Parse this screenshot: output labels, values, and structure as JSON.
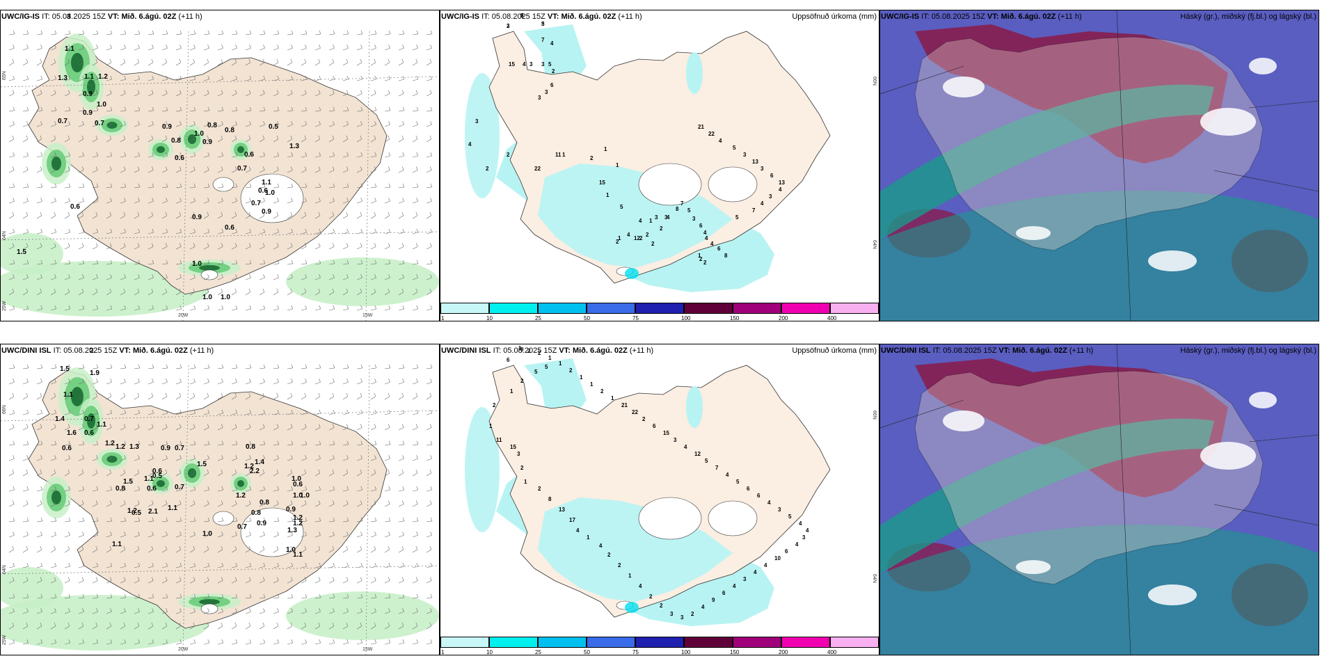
{
  "rows": [
    {
      "model": "UWC/IG-IS",
      "wind_panel": {
        "it_label": "IT:",
        "it_value": "05.08.2025 15Z",
        "vt_label": "VT:",
        "vt_value": "Mið. 6.ágú. 02Z",
        "lead": "(+11 h)",
        "values": [
          "3",
          "1.1",
          "1.3",
          "1.1",
          "1.2",
          "0.9",
          "1.0",
          "0.9",
          "0.7",
          "0.7",
          "0.9",
          "0.8",
          "1.0",
          "0.9",
          "0.8",
          "0.8",
          "0.6",
          "0.5",
          "1.3",
          "0.6",
          "0.7",
          "1.1",
          "1.0",
          "0.7",
          "0.9",
          "0.6",
          "0.6",
          "0.9",
          "0.6",
          "1.0",
          "1.0",
          "1.0",
          "1.5"
        ],
        "lat_labels": [
          "65N",
          "64N"
        ],
        "lon_labels": [
          "25W",
          "20W",
          "15W"
        ]
      },
      "precip_panel": {
        "it_label": "IT:",
        "it_value": "05.08.2025 15Z",
        "vt_label": "VT:",
        "vt_value": "Mið. 6.ágú. 02Z",
        "lead": "(+11 h)",
        "right_title": "Uppsöfnuð úrkoma (mm)",
        "values": [
          "5",
          "3",
          "5",
          "4",
          "7",
          "15",
          "4",
          "3",
          "3",
          "5",
          "2",
          "6",
          "3",
          "3",
          "3",
          "4",
          "2",
          "2",
          "22",
          "11",
          "1",
          "2",
          "1",
          "1",
          "15",
          "1",
          "5",
          "4",
          "1",
          "3",
          "3",
          "1",
          "2",
          "2",
          "2",
          "1",
          "4",
          "12",
          "2",
          "2",
          "2",
          "2",
          "4",
          "8",
          "7",
          "5",
          "3",
          "6",
          "4",
          "4",
          "4",
          "6",
          "8",
          "5",
          "7",
          "4",
          "3",
          "4",
          "13",
          "6",
          "3",
          "13",
          "3",
          "5",
          "4",
          "22",
          "21",
          "2",
          "2",
          "3"
        ],
        "lat_labels": [
          "66N",
          "64N"
        ]
      },
      "cloud_panel": {
        "it_label": "IT:",
        "it_value": "05.08.2025 15Z",
        "vt_label": "VT:",
        "vt_value": "Mið. 6.ágú. 02Z",
        "lead": "(+11 h)",
        "right_title": "Háský (gr.), miðský (fj.bl.) og lágský (bl.)"
      }
    },
    {
      "model": "UWC/DINI ISL",
      "wind_panel": {
        "it_label": "IT:",
        "it_value": "05.08.2025 15Z",
        "vt_label": "VT:",
        "vt_value": "Mið. 6.ágú. 02Z",
        "lead": "(+11 h)",
        "values": [
          "2",
          "1.5",
          "1.9",
          "1.1",
          "1.4",
          "0.7",
          "1.1",
          "0.6",
          "1.6",
          "1.2",
          "1.2",
          "1.3",
          "0.6",
          "0.9",
          "0.7",
          "0.8",
          "1.4",
          "1.2",
          "2.2",
          "0.6",
          "0.5",
          "1.1",
          "1.5",
          "1.2",
          "1.0",
          "0.6",
          "0.7",
          "1.0",
          "0.9",
          "1.2",
          "0.8",
          "1.2",
          "0.9",
          "0.8",
          "0.7",
          "1.0",
          "1.1",
          "0.6",
          "1.2",
          "0.5",
          "2.1",
          "0.8",
          "1.5",
          "1.1",
          "1.0",
          "1.3",
          "1.0",
          "1.1"
        ],
        "lat_labels": [
          "66N",
          "64N"
        ],
        "lon_labels": [
          "25W",
          "20W",
          "15W"
        ]
      },
      "precip_panel": {
        "it_label": "IT:",
        "it_value": "05.08.2025 15Z",
        "vt_label": "VT:",
        "vt_value": "Mið. 6.ágú. 02Z",
        "lead": "(+11 h)",
        "right_title": "Uppsöfnuð úrkoma (mm)",
        "values": [
          "9",
          "6",
          "5",
          "5",
          "2",
          "1",
          "2",
          "1",
          "11",
          "15",
          "3",
          "2",
          "1",
          "2",
          "8",
          "13",
          "17",
          "4",
          "1",
          "4",
          "2",
          "2",
          "1",
          "4",
          "2",
          "2",
          "3",
          "3",
          "2",
          "4",
          "9",
          "6",
          "4",
          "3",
          "4",
          "4",
          "10",
          "6",
          "4",
          "3",
          "4",
          "4",
          "5",
          "3",
          "4",
          "6",
          "6",
          "5",
          "4",
          "7",
          "5",
          "12",
          "4",
          "3",
          "15",
          "6",
          "2",
          "22",
          "21",
          "1",
          "2",
          "1",
          "1",
          "2",
          "1",
          "1",
          "2",
          "2",
          "1"
        ],
        "lat_labels": [
          "66N",
          "64N"
        ]
      },
      "cloud_panel": {
        "it_label": "IT:",
        "it_value": "05.08.2025 15Z",
        "vt_label": "VT:",
        "vt_value": "Mið. 6.ágú. 02Z",
        "lead": "(+11 h)",
        "right_title": "Háský (gr.), miðský (fj.bl.) og lágský (bl.)"
      }
    }
  ],
  "precip_legend": {
    "colors": [
      "#c8f7f7",
      "#00f0f0",
      "#00c0f0",
      "#3a6be8",
      "#2020b0",
      "#600038",
      "#a0007a",
      "#f000b0",
      "#f8b0f0"
    ],
    "ticks": [
      "1",
      "10",
      "25",
      "50",
      "75",
      "100",
      "150",
      "200",
      "400"
    ]
  },
  "colors": {
    "land": "#f2e3d3",
    "precip_land": "#fbeee2",
    "wind_precip_light": "#c8f0c8",
    "wind_precip_mid": "#6acc7a",
    "wind_precip_dark": "#1a6a32",
    "cloud_low": "#5a5ec0",
    "cloud_mid": "#1a9a8a",
    "cloud_high": "#8a1a48"
  }
}
